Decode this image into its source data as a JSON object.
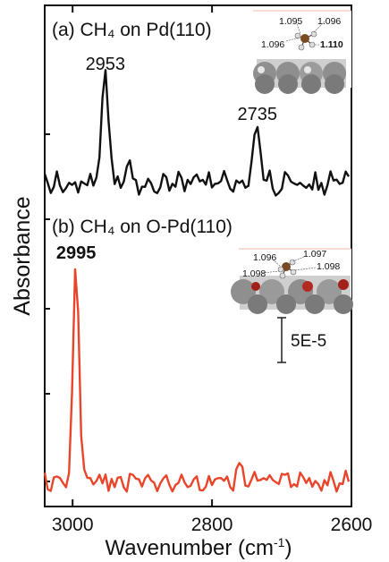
{
  "chart_data": {
    "type": "line",
    "xlabel": "Wavenumber (cm-1)",
    "xlabel_main": "Wavenumber (cm",
    "xlabel_sup": "-1",
    "xlabel_close": ")",
    "ylabel": "Absorbance",
    "xlim": [
      3040,
      2600
    ],
    "x_reversed": true,
    "xticks": [
      3000,
      2800,
      2600
    ],
    "xtick_labels": [
      "3000",
      "2800",
      "2600"
    ],
    "scale_bar_label": "5E-5",
    "panels": [
      {
        "id": "a",
        "title": "(a) CH₄ on Pd(110)",
        "color": "#111111",
        "peaks": [
          {
            "x": 2953,
            "label": "2953"
          },
          {
            "x": 2735,
            "label": "2735"
          }
        ],
        "inset_labels": [
          "1.095",
          "1.096",
          "1.096",
          "1.110"
        ]
      },
      {
        "id": "b",
        "title": "(b) CH₄ on O-Pd(110)",
        "color": "#e8452a",
        "peaks": [
          {
            "x": 2995,
            "label": "2995"
          }
        ],
        "inset_labels": [
          "1.096",
          "1.097",
          "1.098",
          "1.098"
        ]
      }
    ]
  }
}
